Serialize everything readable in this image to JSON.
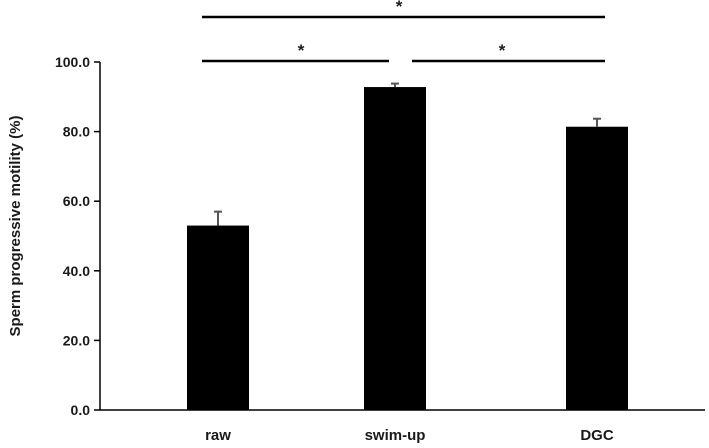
{
  "chart_data": {
    "type": "bar",
    "title": "",
    "xlabel": "",
    "ylabel": "Sperm progressive motility (%)",
    "categories": [
      "raw",
      "swim-up",
      "DGC"
    ],
    "values": [
      53.0,
      92.8,
      81.4
    ],
    "errors": [
      4.0,
      1.0,
      2.3
    ],
    "ylim": [
      0,
      100
    ],
    "yticks": [
      "0.0",
      "20.0",
      "40.0",
      "60.0",
      "80.0",
      "100.0"
    ],
    "grid": false,
    "legend": "none",
    "bar_color": "#000000",
    "error_bar_color": "#555555",
    "significance": [
      {
        "from": "raw",
        "to": "swim-up",
        "label": "*"
      },
      {
        "from": "swim-up",
        "to": "DGC",
        "label": "*"
      },
      {
        "from": "raw",
        "to": "DGC",
        "label": "*"
      }
    ]
  }
}
